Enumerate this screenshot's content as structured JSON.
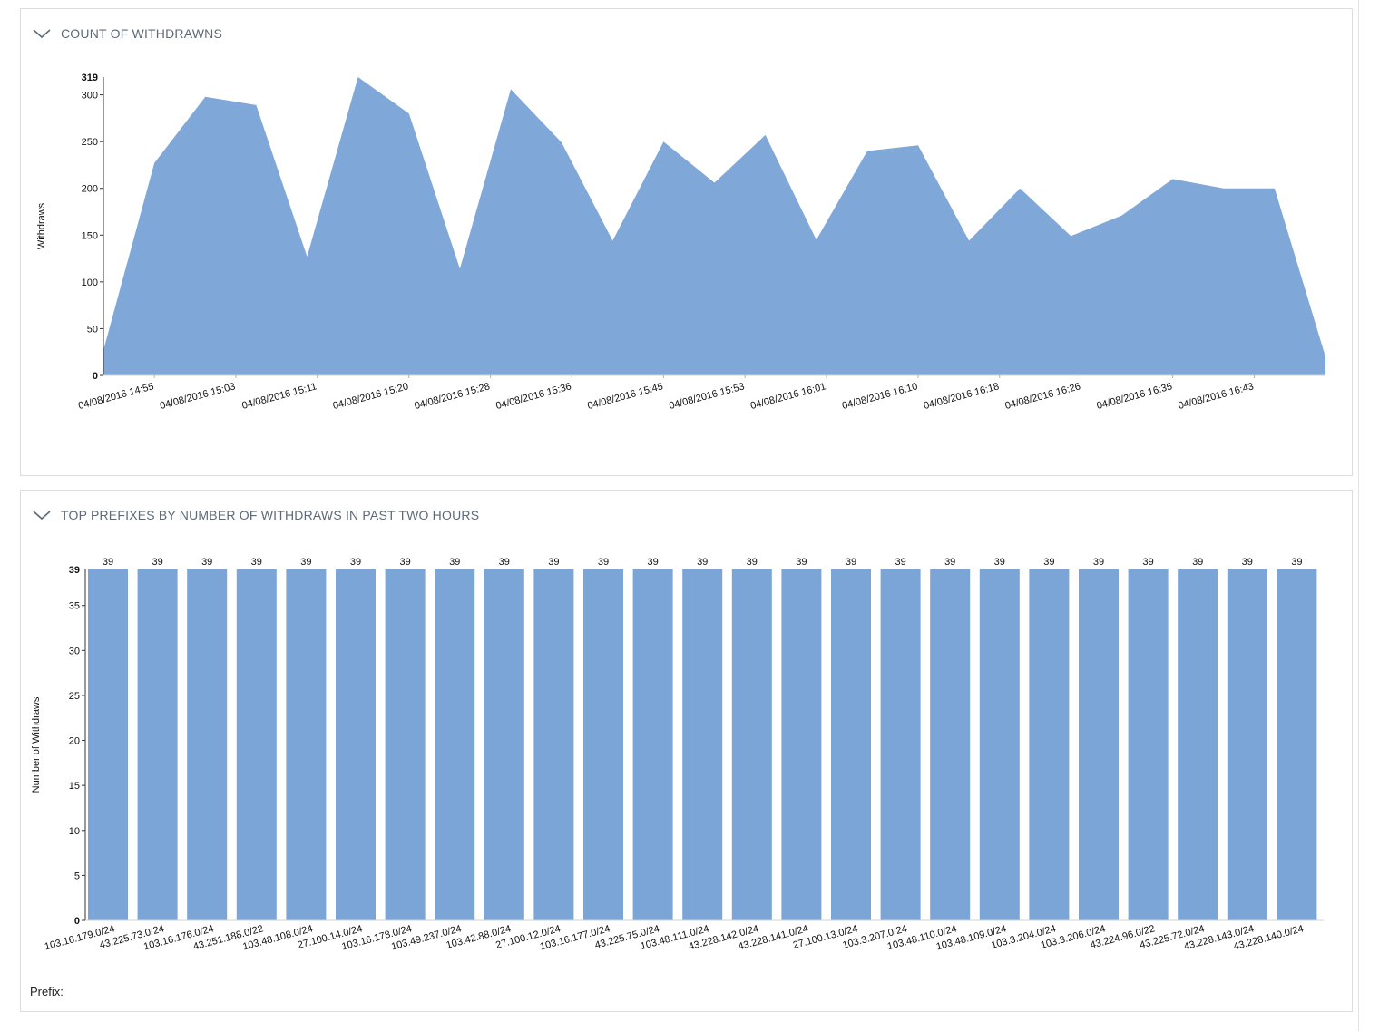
{
  "panels": {
    "withdrawn": {
      "title": "COUNT OF WITHDRAWNS"
    },
    "prefixes": {
      "title": "TOP PREFIXES BY NUMBER OF WITHDRAWS IN PAST TWO HOURS",
      "prefix_label": "Prefix:"
    }
  },
  "colors": {
    "fill": "#7fa8d9",
    "bar": "#7ba4d7",
    "axis": "#333333",
    "title": "#5d6a76"
  },
  "icons": {
    "collapse": "chevron-down-icon"
  },
  "chart_data": [
    {
      "type": "area",
      "title": "COUNT OF WITHDRAWNS",
      "ylabel": "Withdraws",
      "xlabel": "",
      "ylim": [
        0,
        319
      ],
      "y_ticks": [
        0,
        50,
        100,
        150,
        200,
        250,
        300
      ],
      "y_max_label": "319",
      "x_tick_labels": [
        "04/08/2016 14:55",
        "04/08/2016 15:03",
        "04/08/2016 15:11",
        "04/08/2016 15:20",
        "04/08/2016 15:28",
        "04/08/2016 15:36",
        "04/08/2016 15:45",
        "04/08/2016 15:53",
        "04/08/2016 16:01",
        "04/08/2016 16:10",
        "04/08/2016 16:18",
        "04/08/2016 16:26",
        "04/08/2016 16:35",
        "04/08/2016 16:43"
      ],
      "x_range": [
        "04/08/2016 14:50",
        "04/08/2016 16:50"
      ],
      "points": [
        {
          "x": "04/08/2016 14:50",
          "y": 27
        },
        {
          "x": "04/08/2016 14:55",
          "y": 227
        },
        {
          "x": "04/08/2016 15:00",
          "y": 298
        },
        {
          "x": "04/08/2016 15:05",
          "y": 289
        },
        {
          "x": "04/08/2016 15:10",
          "y": 127
        },
        {
          "x": "04/08/2016 15:15",
          "y": 319
        },
        {
          "x": "04/08/2016 15:20",
          "y": 280
        },
        {
          "x": "04/08/2016 15:25",
          "y": 114
        },
        {
          "x": "04/08/2016 15:30",
          "y": 306
        },
        {
          "x": "04/08/2016 15:35",
          "y": 249
        },
        {
          "x": "04/08/2016 15:40",
          "y": 144
        },
        {
          "x": "04/08/2016 15:45",
          "y": 250
        },
        {
          "x": "04/08/2016 15:50",
          "y": 206
        },
        {
          "x": "04/08/2016 15:55",
          "y": 257
        },
        {
          "x": "04/08/2016 16:00",
          "y": 145
        },
        {
          "x": "04/08/2016 16:05",
          "y": 240
        },
        {
          "x": "04/08/2016 16:10",
          "y": 246
        },
        {
          "x": "04/08/2016 16:15",
          "y": 144
        },
        {
          "x": "04/08/2016 16:20",
          "y": 200
        },
        {
          "x": "04/08/2016 16:25",
          "y": 149
        },
        {
          "x": "04/08/2016 16:30",
          "y": 171
        },
        {
          "x": "04/08/2016 16:35",
          "y": 210
        },
        {
          "x": "04/08/2016 16:40",
          "y": 200
        },
        {
          "x": "04/08/2016 16:45",
          "y": 200
        },
        {
          "x": "04/08/2016 16:50",
          "y": 20
        }
      ],
      "grid": false
    },
    {
      "type": "bar",
      "title": "TOP PREFIXES BY NUMBER OF WITHDRAWS IN PAST TWO HOURS",
      "ylabel": "Number of Withdraws",
      "xlabel": "",
      "ylim": [
        0,
        39
      ],
      "y_ticks": [
        0,
        5,
        10,
        15,
        20,
        25,
        30,
        35
      ],
      "y_max_label": "39",
      "categories": [
        "103.16.179.0/24",
        "43.225.73.0/24",
        "103.16.176.0/24",
        "43.251.188.0/22",
        "103.48.108.0/24",
        "27.100.14.0/24",
        "103.16.178.0/24",
        "103.49.237.0/24",
        "103.42.88.0/24",
        "27.100.12.0/24",
        "103.16.177.0/24",
        "43.225.75.0/24",
        "103.48.111.0/24",
        "43.228.142.0/24",
        "43.228.141.0/24",
        "27.100.13.0/24",
        "103.3.207.0/24",
        "103.48.110.0/24",
        "103.48.109.0/24",
        "103.3.204.0/24",
        "103.3.206.0/24",
        "43.224.96.0/22",
        "43.225.72.0/24",
        "43.228.143.0/24",
        "43.228.140.0/24"
      ],
      "values": [
        39,
        39,
        39,
        39,
        39,
        39,
        39,
        39,
        39,
        39,
        39,
        39,
        39,
        39,
        39,
        39,
        39,
        39,
        39,
        39,
        39,
        39,
        39,
        39,
        39
      ],
      "data_labels": [
        "39",
        "39",
        "39",
        "39",
        "39",
        "39",
        "39",
        "39",
        "39",
        "39",
        "39",
        "39",
        "39",
        "39",
        "39",
        "39",
        "39",
        "39",
        "39",
        "39",
        "39",
        "39",
        "39",
        "39",
        "39"
      ],
      "grid": false
    }
  ]
}
